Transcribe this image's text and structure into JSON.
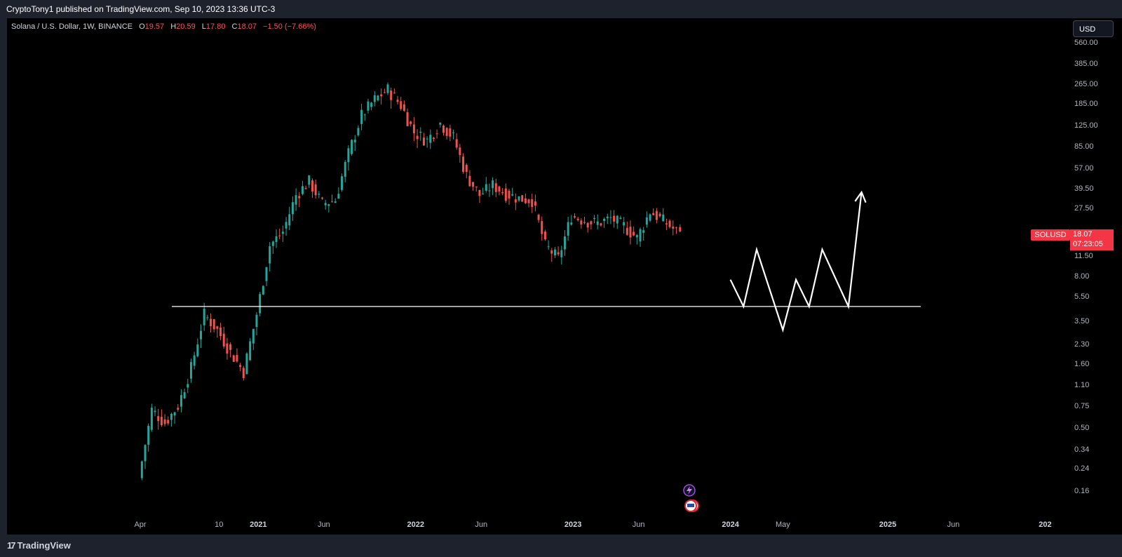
{
  "header": {
    "published_text": "CryptoTony1 published on TradingView.com, Sep 10, 2023 13:36 UTC-3"
  },
  "legend": {
    "symbol": "Solana / U.S. Dollar, 1W, BINANCE",
    "open_label": "O",
    "open": "19.57",
    "high_label": "H",
    "high": "20.59",
    "low_label": "L",
    "low": "17.80",
    "close_label": "C",
    "close": "18.07",
    "change": "−1.50 (−7.66%)"
  },
  "currency_button": "USD",
  "badge": {
    "symbol": "SOLUSD",
    "price": "18.07",
    "countdown": "07:23:05"
  },
  "footer": {
    "logo_mark": "17",
    "brand": "TradingView"
  },
  "colors": {
    "up": "#26a69a",
    "down": "#ef5350",
    "background": "#000000",
    "panel": "#1e222d",
    "badge": "#f23645"
  },
  "icons": [
    "lightning-icon",
    "us-flag-icon"
  ],
  "chart_data": {
    "type": "candlestick",
    "title": "Solana / U.S. Dollar, 1W, BINANCE",
    "scale": "log",
    "y_ticks": [
      "560.00",
      "385.00",
      "265.00",
      "185.00",
      "125.00",
      "85.00",
      "57.00",
      "39.50",
      "27.50",
      "11.50",
      "8.00",
      "5.50",
      "3.50",
      "2.30",
      "1.60",
      "1.10",
      "0.75",
      "0.50",
      "0.34",
      "0.24",
      "0.16"
    ],
    "x_ticks": [
      {
        "date": "2020-04",
        "label": "Apr",
        "bold": false
      },
      {
        "date": "2020-10",
        "label": "10",
        "bold": false
      },
      {
        "date": "2021-01",
        "label": "2021",
        "bold": true
      },
      {
        "date": "2021-06",
        "label": "Jun",
        "bold": false
      },
      {
        "date": "2022-01",
        "label": "2022",
        "bold": true
      },
      {
        "date": "2022-06",
        "label": "Jun",
        "bold": false
      },
      {
        "date": "2023-01",
        "label": "2023",
        "bold": true
      },
      {
        "date": "2023-06",
        "label": "Jun",
        "bold": false
      },
      {
        "date": "2024-01",
        "label": "2024",
        "bold": true
      },
      {
        "date": "2024-05",
        "label": "May",
        "bold": false
      },
      {
        "date": "2025-01",
        "label": "2025",
        "bold": true
      },
      {
        "date": "2025-06",
        "label": "Jun",
        "bold": false
      },
      {
        "date": "2026-01",
        "label": "202",
        "bold": true
      }
    ],
    "ylim": [
      0.14,
      600
    ],
    "last_price": 18.07,
    "horizontal_level": 4.6,
    "price_path": [
      {
        "date": "2020-04",
        "price": 0.2
      },
      {
        "date": "2020-05",
        "price": 0.7
      },
      {
        "date": "2020-06",
        "price": 0.55
      },
      {
        "date": "2020-07",
        "price": 0.75
      },
      {
        "date": "2020-08",
        "price": 1.5
      },
      {
        "date": "2020-09",
        "price": 4.0
      },
      {
        "date": "2020-10",
        "price": 3.0
      },
      {
        "date": "2020-11",
        "price": 2.0
      },
      {
        "date": "2020-12",
        "price": 1.4
      },
      {
        "date": "2021-01",
        "price": 4.0
      },
      {
        "date": "2021-02",
        "price": 14
      },
      {
        "date": "2021-03",
        "price": 18
      },
      {
        "date": "2021-04",
        "price": 35
      },
      {
        "date": "2021-05",
        "price": 45
      },
      {
        "date": "2021-06",
        "price": 30
      },
      {
        "date": "2021-07",
        "price": 32
      },
      {
        "date": "2021-08",
        "price": 75
      },
      {
        "date": "2021-09",
        "price": 150
      },
      {
        "date": "2021-10",
        "price": 200
      },
      {
        "date": "2021-11",
        "price": 240
      },
      {
        "date": "2021-12",
        "price": 180
      },
      {
        "date": "2022-01",
        "price": 110
      },
      {
        "date": "2022-02",
        "price": 95
      },
      {
        "date": "2022-03",
        "price": 130
      },
      {
        "date": "2022-04",
        "price": 100
      },
      {
        "date": "2022-05",
        "price": 50
      },
      {
        "date": "2022-06",
        "price": 35
      },
      {
        "date": "2022-07",
        "price": 42
      },
      {
        "date": "2022-08",
        "price": 36
      },
      {
        "date": "2022-09",
        "price": 33
      },
      {
        "date": "2022-10",
        "price": 32
      },
      {
        "date": "2022-11",
        "price": 14
      },
      {
        "date": "2022-12",
        "price": 11
      },
      {
        "date": "2023-01",
        "price": 24
      },
      {
        "date": "2023-02",
        "price": 22
      },
      {
        "date": "2023-03",
        "price": 21
      },
      {
        "date": "2023-04",
        "price": 23
      },
      {
        "date": "2023-05",
        "price": 20
      },
      {
        "date": "2023-06",
        "price": 16
      },
      {
        "date": "2023-07",
        "price": 26
      },
      {
        "date": "2023-08",
        "price": 22
      },
      {
        "date": "2023-09",
        "price": 18.07
      }
    ],
    "projection_path": [
      {
        "date": "2024-01",
        "price": 7.5
      },
      {
        "date": "2024-02",
        "price": 4.6
      },
      {
        "date": "2024-03",
        "price": 13
      },
      {
        "date": "2024-05",
        "price": 3.0
      },
      {
        "date": "2024-06",
        "price": 7.5
      },
      {
        "date": "2024-07",
        "price": 4.6
      },
      {
        "date": "2024-08",
        "price": 13
      },
      {
        "date": "2024-10",
        "price": 4.6
      },
      {
        "date": "2024-11",
        "price": 37
      }
    ]
  }
}
